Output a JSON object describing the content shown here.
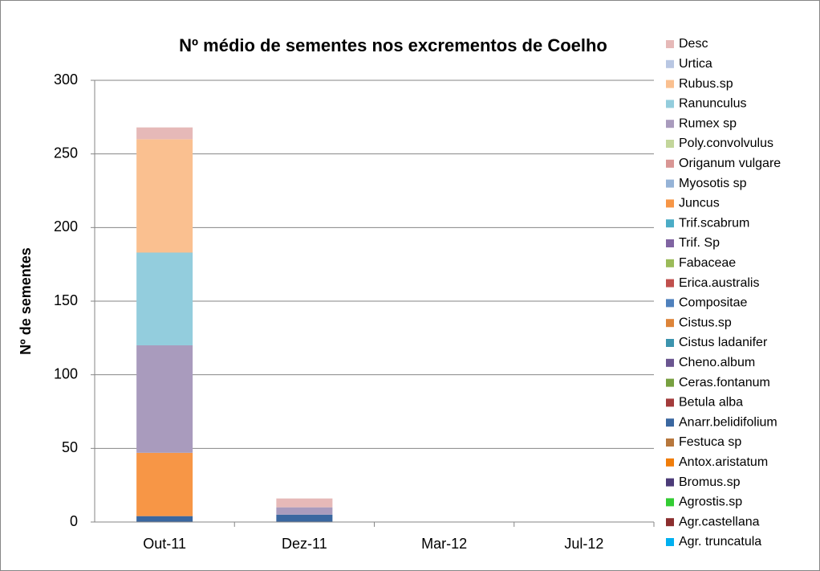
{
  "chart_data": {
    "type": "bar",
    "stacked": true,
    "title": "Nº médio de sementes nos excrementos de Coelho",
    "y_label": "Nº de sementes",
    "categories": [
      "Out-11",
      "Dez-11",
      "Mar-12",
      "Jul-12"
    ],
    "ylim": [
      0,
      300
    ],
    "yticks": [
      0,
      50,
      100,
      150,
      200,
      250,
      300
    ],
    "grid": true,
    "series": [
      {
        "name": "Agr. truncatula",
        "color": "#00B0F0",
        "values": [
          0,
          0,
          0,
          0
        ]
      },
      {
        "name": "Agr.castellana",
        "color": "#8B2E2E",
        "values": [
          0,
          0,
          0,
          0
        ]
      },
      {
        "name": "Agrostis.sp",
        "color": "#33CC33",
        "values": [
          0,
          0,
          0,
          0
        ]
      },
      {
        "name": "Bromus.sp",
        "color": "#4B3B78",
        "values": [
          0,
          0,
          0,
          0
        ]
      },
      {
        "name": "Antox.aristatum",
        "color": "#F07D0A",
        "values": [
          0,
          0,
          0,
          0
        ]
      },
      {
        "name": "Festuca sp",
        "color": "#B7773C",
        "values": [
          0,
          0,
          0,
          0
        ]
      },
      {
        "name": "Anarr.belidifolium",
        "color": "#3A67A0",
        "values": [
          4,
          5,
          0,
          0
        ]
      },
      {
        "name": "Betula alba",
        "color": "#A33B3B",
        "values": [
          0,
          0,
          0,
          0
        ]
      },
      {
        "name": "Ceras.fontanum",
        "color": "#77A040",
        "values": [
          0,
          0,
          0,
          0
        ]
      },
      {
        "name": "Cheno.album",
        "color": "#6A5590",
        "values": [
          0,
          0,
          0,
          0
        ]
      },
      {
        "name": "Cistus ladanifer",
        "color": "#3C94AE",
        "values": [
          0,
          0,
          0,
          0
        ]
      },
      {
        "name": "Cistus.sp",
        "color": "#DD8439",
        "values": [
          0,
          0,
          0,
          0
        ]
      },
      {
        "name": "Compositae",
        "color": "#4F81BD",
        "values": [
          0,
          0,
          0,
          0
        ]
      },
      {
        "name": "Erica.australis",
        "color": "#C0504D",
        "values": [
          0,
          0,
          0,
          0
        ]
      },
      {
        "name": "Fabaceae",
        "color": "#9BBB59",
        "values": [
          0,
          0,
          0,
          0
        ]
      },
      {
        "name": "Trif. Sp",
        "color": "#8064A2",
        "values": [
          0,
          0,
          0,
          0
        ]
      },
      {
        "name": "Trif.scabrum",
        "color": "#4BACC6",
        "values": [
          0,
          0,
          0,
          0
        ]
      },
      {
        "name": "Juncus",
        "color": "#F79646",
        "values": [
          43,
          0,
          0,
          0
        ]
      },
      {
        "name": "Myosotis sp",
        "color": "#95B3D7",
        "values": [
          0,
          0,
          0,
          0
        ]
      },
      {
        "name": "Origanum vulgare",
        "color": "#D99694",
        "values": [
          0,
          0,
          0,
          0
        ]
      },
      {
        "name": "Poly.convolvulus",
        "color": "#C3D69B",
        "values": [
          0,
          0,
          0,
          0
        ]
      },
      {
        "name": "Rumex sp",
        "color": "#A99BBD",
        "values": [
          73,
          5,
          0,
          0
        ]
      },
      {
        "name": "Ranunculus",
        "color": "#93CDDD",
        "values": [
          63,
          0,
          0,
          0
        ]
      },
      {
        "name": "Rubus.sp",
        "color": "#FAC090",
        "values": [
          77,
          0,
          0,
          0
        ]
      },
      {
        "name": "Urtica",
        "color": "#B9C7E3",
        "values": [
          0,
          0,
          0,
          0
        ]
      },
      {
        "name": "Desc",
        "color": "#E6B9B8",
        "values": [
          8,
          6,
          0,
          0
        ]
      }
    ]
  }
}
